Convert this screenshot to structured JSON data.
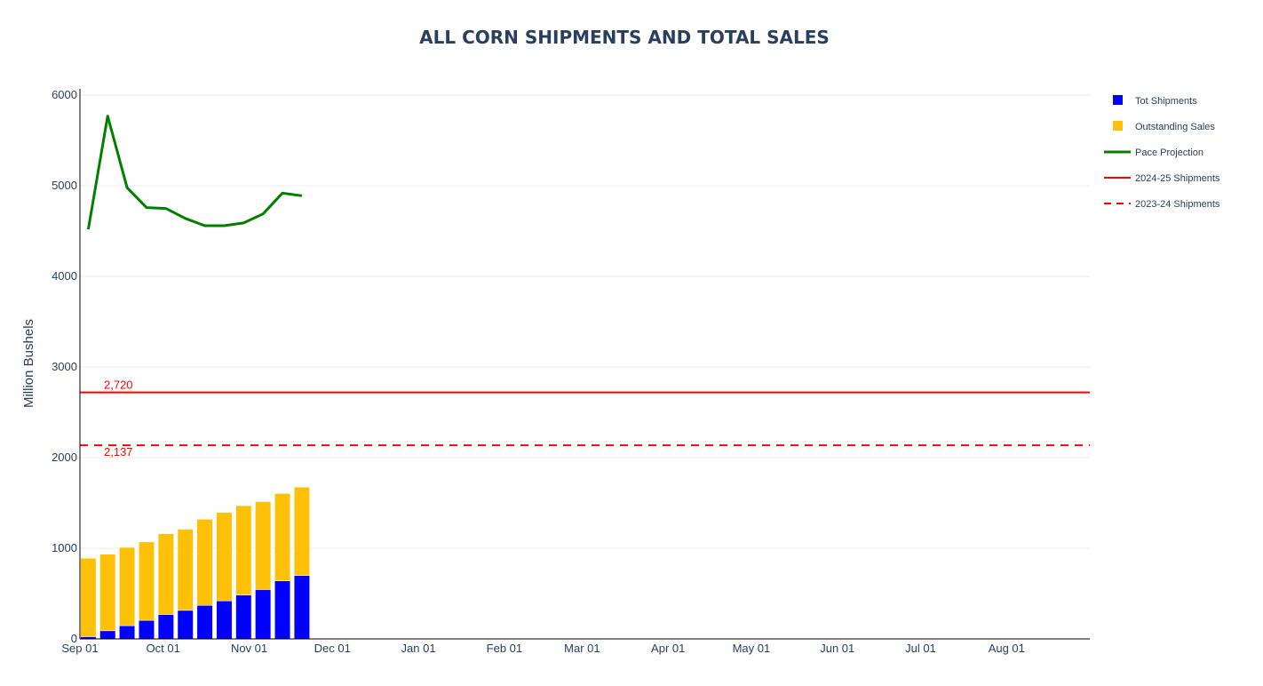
{
  "chart_data": {
    "type": "bar",
    "title": "ALL CORN SHIPMENTS AND TOTAL SALES",
    "ylabel": "Million Bushels",
    "xlabel": "",
    "ylim": [
      0,
      6070
    ],
    "xlim": [
      "2025-09-01",
      "2026-08-31"
    ],
    "barmode": "stack",
    "grid": true,
    "legend_position": "top-right",
    "y_ticks": [
      0,
      1000,
      2000,
      3000,
      4000,
      5000,
      6000
    ],
    "x_ticks": [
      {
        "date": "2025-09-01",
        "label": "Sep 01"
      },
      {
        "date": "2025-10-01",
        "label": "Oct 01"
      },
      {
        "date": "2025-11-01",
        "label": "Nov 01"
      },
      {
        "date": "2025-12-01",
        "label": "Dec 01"
      },
      {
        "date": "2026-01-01",
        "label": "Jan 01"
      },
      {
        "date": "2026-02-01",
        "label": "Feb 01"
      },
      {
        "date": "2026-03-01",
        "label": "Mar 01"
      },
      {
        "date": "2026-04-01",
        "label": "Apr 01"
      },
      {
        "date": "2026-05-01",
        "label": "May 01"
      },
      {
        "date": "2026-06-01",
        "label": "Jun 01"
      },
      {
        "date": "2026-07-01",
        "label": "Jul 01"
      },
      {
        "date": "2026-08-01",
        "label": "Aug 01"
      }
    ],
    "x": [
      "2025-09-04",
      "2025-09-11",
      "2025-09-18",
      "2025-09-25",
      "2025-10-02",
      "2025-10-09",
      "2025-10-16",
      "2025-10-23",
      "2025-10-30",
      "2025-11-06",
      "2025-11-13",
      "2025-11-20"
    ],
    "series": [
      {
        "name": "Tot Shipments",
        "kind": "bar",
        "color": "#0000ff",
        "values": [
          25,
          90,
          145,
          205,
          270,
          315,
          370,
          420,
          485,
          545,
          640,
          700
        ]
      },
      {
        "name": "Outstanding Sales",
        "kind": "bar",
        "color": "#ffc107",
        "values": [
          865,
          845,
          865,
          865,
          890,
          895,
          950,
          975,
          985,
          970,
          965,
          975
        ]
      },
      {
        "name": "Pace Projection",
        "kind": "line",
        "color": "#008000",
        "values": [
          4520,
          5770,
          4980,
          4760,
          4750,
          4640,
          4560,
          4560,
          4590,
          4690,
          4920,
          4890
        ]
      },
      {
        "name": "2024-25 Shipments",
        "kind": "hline",
        "color": "#ff0000",
        "dash": "solid",
        "value": 2720
      },
      {
        "name": "2023-24 Shipments",
        "kind": "hline",
        "color": "#ff0000",
        "dash": "dash",
        "value": 2137
      }
    ],
    "annotations": [
      {
        "text": "2,720",
        "value": 2720,
        "color": "#ff0000"
      },
      {
        "text": "2,137",
        "value": 2137,
        "color": "#ff0000"
      }
    ]
  }
}
